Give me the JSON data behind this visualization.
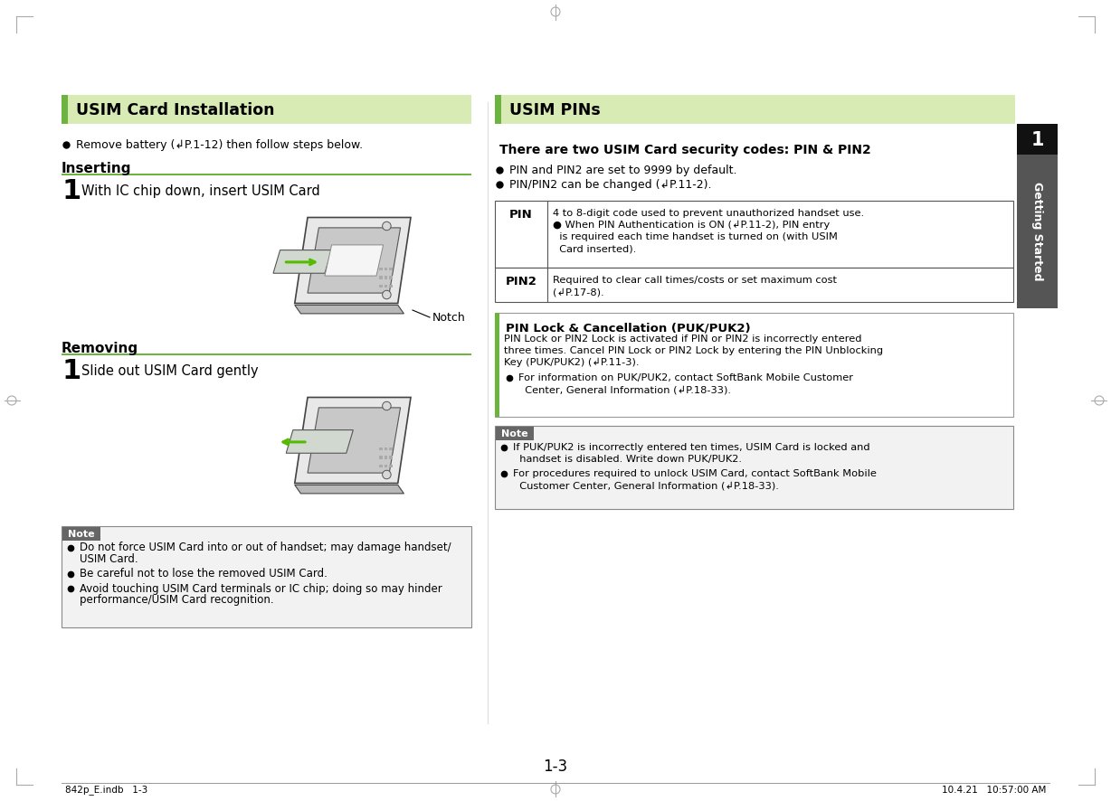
{
  "page_bg": "#ffffff",
  "light_green_header": "#d9ebb5",
  "dark_green_accent": "#6db33f",
  "note_bg": "#e8e8e8",
  "table_border": "#666666",
  "black": "#000000",
  "gray_side": "#555555",
  "tab_bg": "#111111",
  "tab_text": "#ffffff",
  "section1_title": "USIM Card Installation",
  "section2_title": "USIM PINs",
  "remove_battery_text": "Remove battery (↲P.1-12) then follow steps below.",
  "inserting_label": "Inserting",
  "inserting_step": "With IC chip down, insert USIM Card",
  "removing_label": "Removing",
  "removing_step": "Slide out USIM Card gently",
  "notch_label": "Notch",
  "note_label": "Note",
  "note1_items": [
    "Do not force USIM Card into or out of handset; may damage handset/\nUSIM Card.",
    "Be careful not to lose the removed USIM Card.",
    "Avoid touching USIM Card terminals or IC chip; doing so may hinder\nperformance/USIM Card recognition."
  ],
  "pins_subtitle": "There are two USIM Card security codes: PIN & PIN2",
  "pins_bullets": [
    "PIN and PIN2 are set to 9999 by default.",
    "PIN/PIN2 can be changed (↲P.11-2)."
  ],
  "table_rows": [
    {
      "label": "PIN",
      "lines": [
        "4 to 8-digit code used to prevent unauthorized handset use.",
        "● When PIN Authentication is ON (↲P.11-2), PIN entry",
        "  is required each time handset is turned on (with USIM",
        "  Card inserted)."
      ]
    },
    {
      "label": "PIN2",
      "lines": [
        "Required to clear call times/costs or set maximum cost",
        "(↲P.17-8)."
      ]
    }
  ],
  "puk_section_title": "PIN Lock & Cancellation (PUK/PUK2)",
  "puk_section_lines": [
    "PIN Lock or PIN2 Lock is activated if PIN or PIN2 is incorrectly entered",
    "three times. Cancel PIN Lock or PIN2 Lock by entering the PIN Unblocking",
    "Key (PUK/PUK2) (↲P.11-3)."
  ],
  "puk_bullets": [
    "For information on PUK/PUK2, contact SoftBank Mobile Customer",
    "  Center, General Information (↲P.18-33)."
  ],
  "note2_label": "Note",
  "note2_items": [
    [
      "If PUK/PUK2 is incorrectly entered ten times, USIM Card is locked and",
      "  handset is disabled. Write down PUK/PUK2."
    ],
    [
      "For procedures required to unlock USIM Card, contact SoftBank Mobile",
      "  Customer Center, General Information (↲P.18-33)."
    ]
  ],
  "tab_number": "1",
  "tab_text_label": "Getting Started",
  "page_number": "1-3",
  "footer_left": "842p_E.indb   1-3",
  "footer_right": "10.4.21   10:57:00 AM"
}
